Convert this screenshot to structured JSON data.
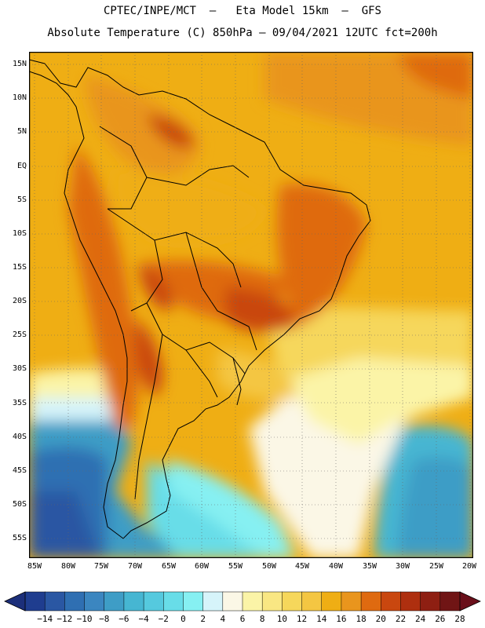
{
  "header": {
    "title_line1": "CPTEC/INPE/MCT  –   Eta Model 15km  –  GFS",
    "title_line2": "Absolute Temperature (C) 850hPa – 09/04/2021 12UTC fct=200h"
  },
  "map": {
    "region": "South America",
    "field": "Absolute Temperature 850hPa",
    "lat_labels": [
      "15N",
      "10N",
      "5N",
      "EQ",
      "5S",
      "10S",
      "15S",
      "20S",
      "25S",
      "30S",
      "35S",
      "40S",
      "45S",
      "50S",
      "55S"
    ],
    "lon_labels": [
      "85W",
      "80W",
      "75W",
      "70W",
      "65W",
      "60W",
      "55W",
      "50W",
      "45W",
      "40W",
      "35W",
      "30W",
      "25W",
      "20W"
    ]
  },
  "legend": {
    "labels": [
      "−14",
      "−12",
      "−10",
      "−8",
      "−6",
      "−4",
      "−2",
      "0",
      "2",
      "4",
      "6",
      "8",
      "10",
      "12",
      "14",
      "16",
      "18",
      "20",
      "22",
      "24",
      "26",
      "28"
    ],
    "colors": [
      "#1f3d8f",
      "#2a57a3",
      "#2f6fb2",
      "#3b86c0",
      "#3e9dc6",
      "#46b6d2",
      "#55c9de",
      "#68dde8",
      "#86f0f2",
      "#d6f4fa",
      "#fbf7e6",
      "#fbf4a7",
      "#f9e783",
      "#f6d75b",
      "#f4c642",
      "#efae14",
      "#e9951d",
      "#df6a10",
      "#c9470f",
      "#ae2f0f",
      "#8e1f12",
      "#701515"
    ],
    "min_arrow_color": "#1c2f7a",
    "max_arrow_color": "#6a0f1a"
  }
}
